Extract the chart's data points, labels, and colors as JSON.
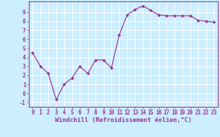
{
  "x": [
    0,
    1,
    2,
    3,
    4,
    5,
    6,
    7,
    8,
    9,
    10,
    11,
    12,
    13,
    14,
    15,
    16,
    17,
    18,
    19,
    20,
    21,
    22,
    23
  ],
  "y": [
    4.5,
    3.0,
    2.2,
    -0.7,
    1.0,
    1.7,
    3.0,
    2.2,
    3.7,
    3.7,
    2.8,
    6.5,
    8.7,
    9.3,
    9.7,
    9.2,
    8.7,
    8.6,
    8.6,
    8.6,
    8.6,
    8.1,
    8.0,
    7.9
  ],
  "line_color": "#993399",
  "marker": "D",
  "marker_size": 2.2,
  "bg_color": "#cceeff",
  "grid_color": "#ffffff",
  "xlabel": "Windchill (Refroidissement éolien,°C)",
  "xlim": [
    -0.5,
    23.5
  ],
  "ylim": [
    -1.5,
    10.2
  ],
  "yticks": [
    -1,
    0,
    1,
    2,
    3,
    4,
    5,
    6,
    7,
    8,
    9
  ],
  "xticks": [
    0,
    1,
    2,
    3,
    4,
    5,
    6,
    7,
    8,
    9,
    10,
    11,
    12,
    13,
    14,
    15,
    16,
    17,
    18,
    19,
    20,
    21,
    22,
    23
  ],
  "tick_fontsize": 5.5,
  "xlabel_fontsize": 6.5,
  "line_color_tick": "#993399",
  "tick_color": "#993399"
}
